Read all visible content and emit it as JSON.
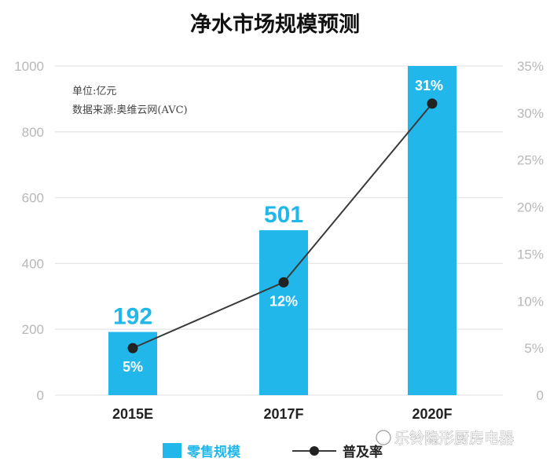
{
  "chart_data": {
    "type": "bar",
    "title": "净水市场规模预测",
    "categories": [
      "2015E",
      "2017F",
      "2020F"
    ],
    "series": [
      {
        "name": "零售规模",
        "type": "bar",
        "axis": "left",
        "values": [
          192,
          501,
          1000
        ],
        "labels": [
          "192",
          "501",
          ""
        ]
      },
      {
        "name": "普及率",
        "type": "line",
        "axis": "right",
        "values": [
          5,
          12,
          31
        ],
        "labels": [
          "5%",
          "12%",
          "31%"
        ]
      }
    ],
    "y_left": {
      "ticks": [
        "0",
        "200",
        "400",
        "600",
        "800",
        "1000"
      ],
      "lim": [
        0,
        1000
      ]
    },
    "y_right": {
      "ticks": [
        "0",
        "5%",
        "10%",
        "15%",
        "20%",
        "25%",
        "30%",
        "35%"
      ],
      "lim": [
        0,
        35
      ]
    },
    "notes": [
      "单位:亿元",
      "数据来源:奥维云网(AVC)"
    ],
    "grid": true,
    "legend_position": "bottom-left",
    "colors": {
      "bar": "#22b7ea",
      "line": "#3a3a3a",
      "grid": "#e6e6e6",
      "axis_text": "#b8b8b8"
    }
  },
  "watermark": "乐铃隐形厨房电器"
}
